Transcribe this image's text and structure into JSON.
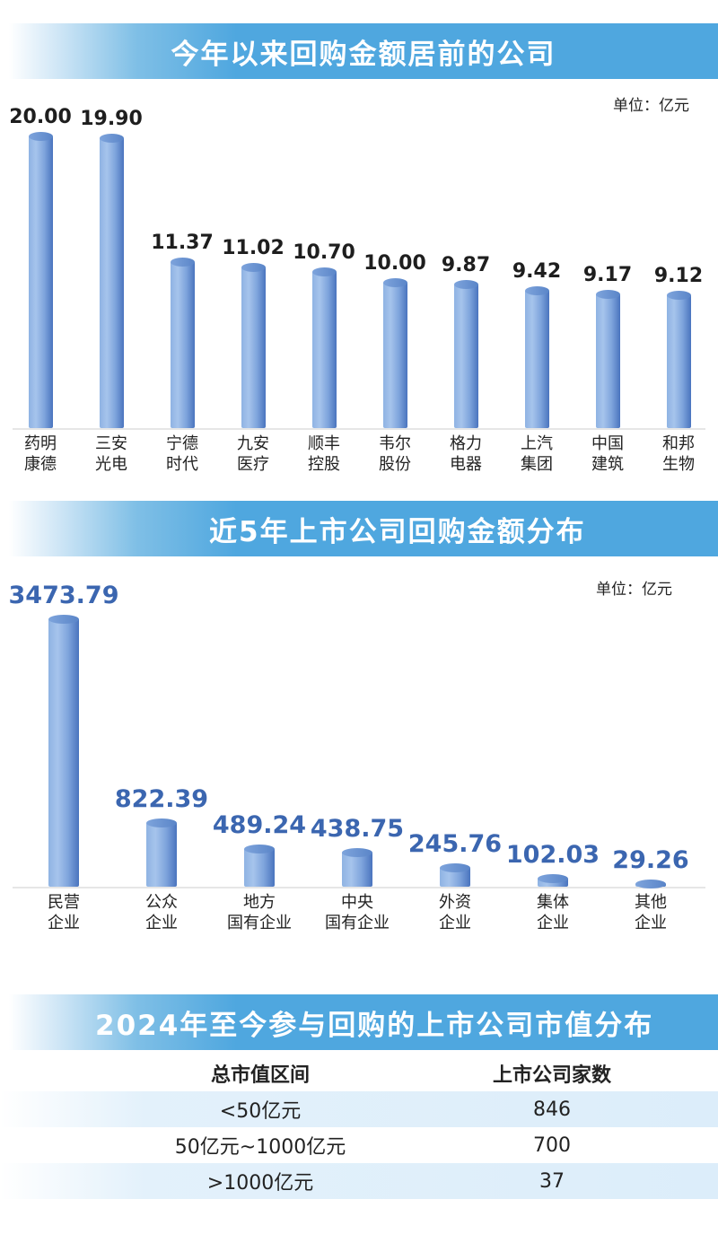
{
  "sections": {
    "s1": {
      "title": "今年以来回购金额居前的公司",
      "unit": "单位：亿元"
    },
    "s2": {
      "title": "近5年上市公司回购金额分布",
      "unit": "单位：亿元"
    },
    "s3": {
      "title": "2024年至今参与回购的上市公司市值分布"
    }
  },
  "chart_data": [
    {
      "type": "bar",
      "title": "今年以来回购金额居前的公司",
      "ylabel": "单位：亿元",
      "categories": [
        "药明\n康德",
        "三安\n光电",
        "宁德\n时代",
        "九安\n医疗",
        "顺丰\n控股",
        "韦尔\n股份",
        "格力\n电器",
        "上汽\n集团",
        "中国\n建筑",
        "和邦\n生物"
      ],
      "values": [
        20.0,
        19.9,
        11.37,
        11.02,
        10.7,
        10.0,
        9.87,
        9.42,
        9.17,
        9.12
      ],
      "labels": [
        "20.00",
        "19.90",
        "11.37",
        "11.02",
        "10.70",
        "10.00",
        "9.87",
        "9.42",
        "9.17",
        "9.12"
      ],
      "grid": false,
      "legend": null
    },
    {
      "type": "bar",
      "title": "近5年上市公司回购金额分布",
      "ylabel": "单位：亿元",
      "categories": [
        "民营\n企业",
        "公众\n企业",
        "地方\n国有企业",
        "中央\n国有企业",
        "外资\n企业",
        "集体\n企业",
        "其他\n企业"
      ],
      "values": [
        3473.79,
        822.39,
        489.24,
        438.75,
        245.76,
        102.03,
        29.26
      ],
      "labels": [
        "3473.79",
        "822.39",
        "489.24",
        "438.75",
        "245.76",
        "102.03",
        "29.26"
      ],
      "grid": false,
      "legend": null
    },
    {
      "type": "table",
      "title": "2024年至今参与回购的上市公司市值分布",
      "columns": [
        "总市值区间",
        "上市公司家数"
      ],
      "rows": [
        [
          "<50亿元",
          846
        ],
        [
          "50亿元~1000亿元",
          700
        ],
        [
          ">1000亿元",
          37
        ]
      ]
    }
  ],
  "table": {
    "headers": [
      "总市值区间",
      "上市公司家数"
    ],
    "rows": [
      {
        "range": "<50亿元",
        "count": "846"
      },
      {
        "range": "50亿元~1000亿元",
        "count": "700"
      },
      {
        "range": ">1000亿元",
        "count": "37"
      }
    ]
  },
  "colors": {
    "banner": "#4fa7df",
    "bar": "#7ea4dc",
    "value2": "#3b66b0",
    "row_shade": "#dcedfa"
  }
}
